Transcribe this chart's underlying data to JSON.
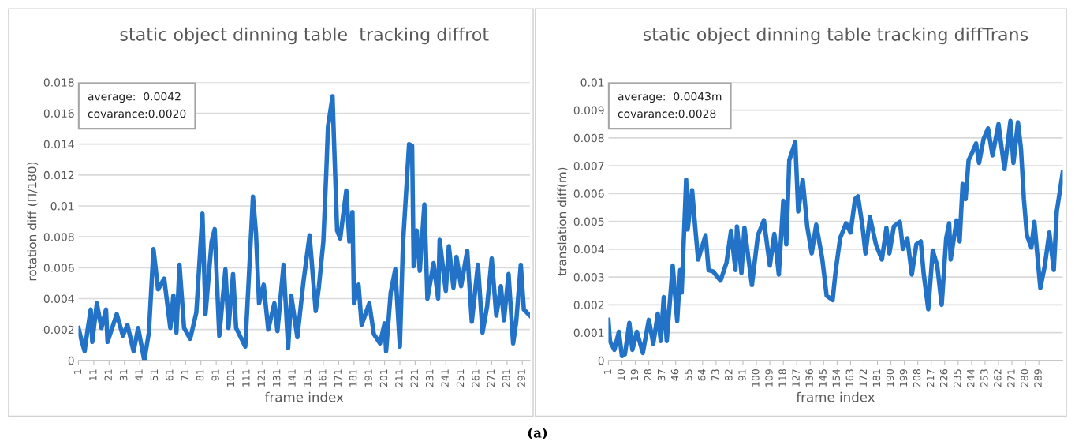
{
  "chart_data": [
    {
      "type": "line",
      "title": "static object dinning table  tracking diffrot",
      "xlabel": "frame index",
      "ylabel": "rotation diff (Π/180)",
      "grid": "y",
      "line_style": "solid",
      "marker": "none",
      "annotations": [
        "average:  0.0042\ncovarance:0.0020"
      ],
      "xlim": [
        1,
        296
      ],
      "xticks": [
        1,
        11,
        21,
        31,
        41,
        51,
        61,
        71,
        81,
        91,
        101,
        111,
        121,
        131,
        141,
        151,
        161,
        171,
        181,
        191,
        201,
        211,
        221,
        231,
        241,
        251,
        261,
        271,
        281,
        291
      ],
      "ylim": [
        0,
        0.018
      ],
      "yticks": [
        0,
        0.002,
        0.004,
        0.006,
        0.008,
        0.01,
        0.012,
        0.014,
        0.016,
        0.018
      ],
      "series": [
        {
          "color": "#2273c7",
          "x": [
            1,
            3,
            5,
            7,
            9,
            10,
            13,
            16,
            19,
            20,
            26,
            30,
            33,
            37,
            40,
            44,
            47,
            50,
            53,
            57,
            61,
            63,
            65,
            67,
            70,
            74,
            78,
            82,
            84,
            88,
            90,
            93,
            97,
            99,
            102,
            104,
            110,
            115,
            117,
            119,
            122,
            125,
            129,
            131,
            135,
            138,
            140,
            144,
            148,
            152,
            156,
            158,
            161,
            163,
            164,
            167,
            168,
            170,
            172,
            176,
            178,
            180,
            181,
            184,
            186,
            191,
            194,
            198,
            201,
            202,
            205,
            208,
            211,
            213,
            217,
            219,
            220,
            222,
            224,
            227,
            229,
            233,
            236,
            237,
            241,
            243,
            246,
            248,
            251,
            255,
            258,
            262,
            265,
            268,
            271,
            274,
            277,
            279,
            282,
            285,
            287,
            290,
            292,
            296
          ],
          "values": [
            0.0021,
            0.0013,
            0.0006,
            0.002,
            0.0033,
            0.0012,
            0.0037,
            0.0021,
            0.0033,
            0.0012,
            0.003,
            0.0016,
            0.0023,
            0.0006,
            0.0021,
            0.0,
            0.0018,
            0.0072,
            0.0046,
            0.0053,
            0.0021,
            0.0042,
            0.0018,
            0.0062,
            0.0021,
            0.0014,
            0.0031,
            0.0095,
            0.003,
            0.0077,
            0.0085,
            0.0016,
            0.0059,
            0.0021,
            0.0056,
            0.0021,
            0.0009,
            0.0106,
            0.0082,
            0.0037,
            0.0049,
            0.002,
            0.0037,
            0.0019,
            0.0062,
            0.0008,
            0.0042,
            0.0015,
            0.0051,
            0.0081,
            0.0032,
            0.0047,
            0.0077,
            0.0124,
            0.0151,
            0.0171,
            0.0141,
            0.0084,
            0.0079,
            0.011,
            0.0077,
            0.0096,
            0.0037,
            0.0049,
            0.0023,
            0.0037,
            0.0017,
            0.0011,
            0.0024,
            0.0006,
            0.0044,
            0.0059,
            0.0009,
            0.0075,
            0.014,
            0.0139,
            0.0061,
            0.0084,
            0.0058,
            0.0101,
            0.004,
            0.0063,
            0.004,
            0.0078,
            0.0045,
            0.0074,
            0.0047,
            0.0067,
            0.0048,
            0.0071,
            0.0025,
            0.0062,
            0.0018,
            0.0035,
            0.0066,
            0.0029,
            0.0048,
            0.0026,
            0.0056,
            0.0011,
            0.0025,
            0.0062,
            0.0033,
            0.0029
          ]
        }
      ]
    },
    {
      "type": "line",
      "title": "static object dinning table tracking diffTrans",
      "xlabel": "frame index",
      "ylabel": "translation diff(m)",
      "grid": "y",
      "line_style": "solid",
      "marker": "none",
      "annotations": [
        "average:  0.0043m\ncovarance:0.0028",
        "(a)"
      ],
      "xlim": [
        1,
        305
      ],
      "xticks": [
        1,
        10,
        19,
        28,
        37,
        46,
        55,
        64,
        73,
        82,
        91,
        100,
        109,
        118,
        127,
        136,
        145,
        154,
        163,
        172,
        181,
        190,
        199,
        208,
        217,
        226,
        235,
        244,
        253,
        262,
        271,
        280,
        289
      ],
      "ylim": [
        0,
        0.01
      ],
      "yticks": [
        0,
        0.001,
        0.002,
        0.003,
        0.004,
        0.005,
        0.006,
        0.007,
        0.008,
        0.009,
        0.01
      ],
      "series": [
        {
          "color": "#2273c7",
          "x": [
            1,
            2,
            5,
            8,
            10,
            12,
            15,
            17,
            20,
            24,
            28,
            31,
            34,
            36,
            38,
            40,
            44,
            47,
            49,
            50,
            53,
            54,
            57,
            59,
            61,
            66,
            68,
            71,
            76,
            80,
            83,
            86,
            87,
            90,
            92,
            97,
            101,
            105,
            109,
            112,
            115,
            118,
            120,
            122,
            126,
            128,
            131,
            134,
            137,
            140,
            144,
            147,
            151,
            153,
            156,
            160,
            163,
            166,
            168,
            171,
            173,
            176,
            180,
            184,
            187,
            189,
            192,
            196,
            198,
            201,
            204,
            207,
            210,
            212,
            215,
            218,
            221,
            224,
            227,
            229,
            230,
            234,
            236,
            238,
            240,
            242,
            244,
            247,
            249,
            252,
            255,
            258,
            262,
            266,
            270,
            272,
            275,
            277,
            279,
            281,
            284,
            286,
            290,
            293,
            296,
            299,
            301,
            305
          ],
          "values": [
            0.00146,
            0.0007,
            0.00038,
            0.00103,
            0.00016,
            0.00022,
            0.00135,
            0.00038,
            0.00103,
            0.00027,
            0.00146,
            0.0006,
            0.00168,
            0.0007,
            0.00228,
            0.0007,
            0.00341,
            0.00141,
            0.00325,
            0.00244,
            0.0065,
            0.00471,
            0.00612,
            0.00482,
            0.00363,
            0.0045,
            0.00325,
            0.0032,
            0.00287,
            0.00352,
            0.00466,
            0.00325,
            0.00482,
            0.00314,
            0.00477,
            0.00271,
            0.0045,
            0.00504,
            0.00341,
            0.00455,
            0.00309,
            0.00574,
            0.00417,
            0.0072,
            0.00785,
            0.00536,
            0.0065,
            0.00482,
            0.00385,
            0.00488,
            0.00368,
            0.00233,
            0.00217,
            0.0032,
            0.00439,
            0.00493,
            0.0046,
            0.0058,
            0.0059,
            0.00482,
            0.00385,
            0.00515,
            0.00417,
            0.00363,
            0.00477,
            0.00385,
            0.00482,
            0.00498,
            0.00401,
            0.00439,
            0.00309,
            0.00417,
            0.00428,
            0.00309,
            0.00184,
            0.00395,
            0.00341,
            0.002,
            0.00439,
            0.00493,
            0.00363,
            0.00504,
            0.00428,
            0.00634,
            0.0058,
            0.0072,
            0.00742,
            0.0078,
            0.0071,
            0.00796,
            0.00834,
            0.00737,
            0.0085,
            0.00688,
            0.00861,
            0.0071,
            0.00856,
            0.00764,
            0.0058,
            0.0045,
            0.00406,
            0.00498,
            0.0026,
            0.00341,
            0.0046,
            0.00325,
            0.00536,
            0.00677
          ]
        }
      ]
    }
  ]
}
